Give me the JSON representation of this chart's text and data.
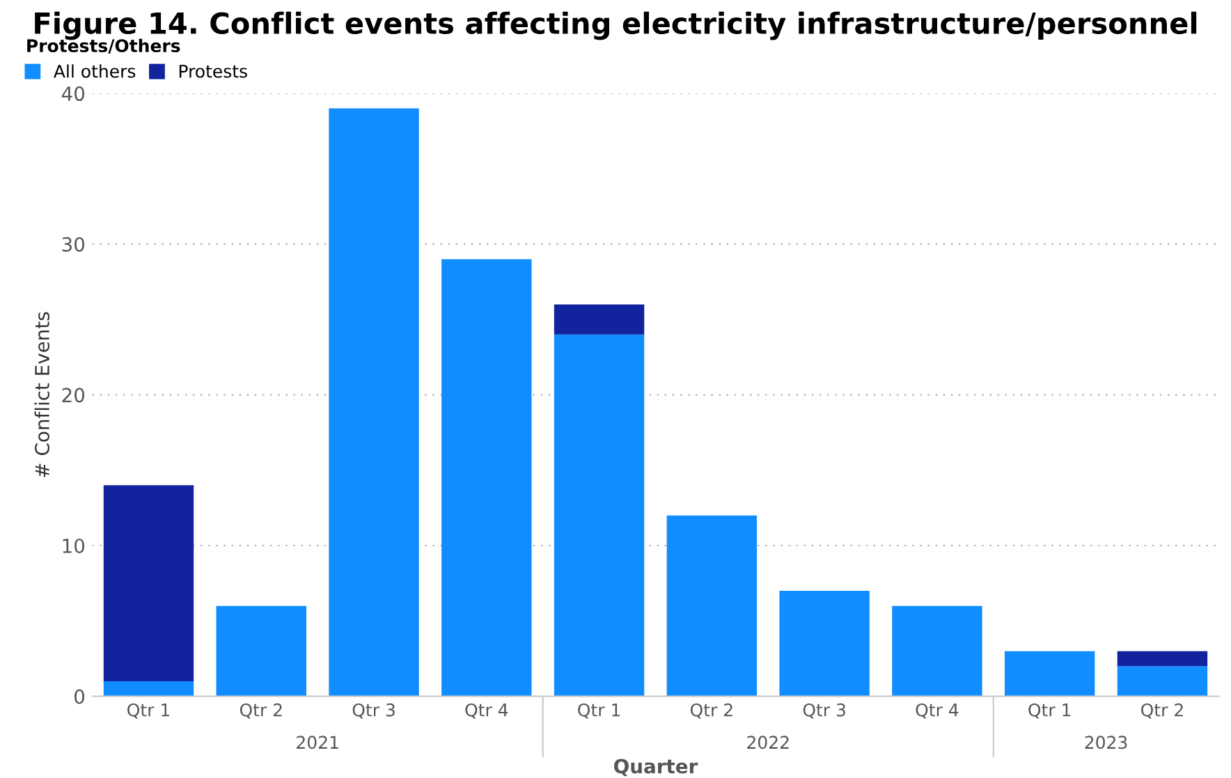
{
  "chart_data": {
    "type": "bar",
    "title": "Figure 14. Conflict events affecting electricity infrastructure/personnel",
    "xlabel": "Quarter",
    "ylabel": "# Conflict Events",
    "legend_title": "Protests/Others",
    "legend": "top left",
    "stacked": true,
    "grid": "y",
    "categories": [
      "Qtr 1",
      "Qtr 2",
      "Qtr 3",
      "Qtr 4",
      "Qtr 1",
      "Qtr 2",
      "Qtr 3",
      "Qtr 4",
      "Qtr 1",
      "Qtr 2"
    ],
    "series": [
      {
        "name": "All others",
        "color": "#118dff",
        "values": [
          1,
          6,
          39,
          29,
          24,
          12,
          7,
          6,
          3,
          2
        ]
      },
      {
        "name": "Protests",
        "color": "#12239e",
        "values": [
          13,
          0,
          0,
          0,
          2,
          0,
          0,
          0,
          0,
          1
        ]
      }
    ],
    "annotations": [
      "2021",
      "2022",
      "2023"
    ],
    "ylim": [
      0,
      40
    ],
    "yticks": [
      0,
      10,
      20,
      30,
      40
    ]
  }
}
